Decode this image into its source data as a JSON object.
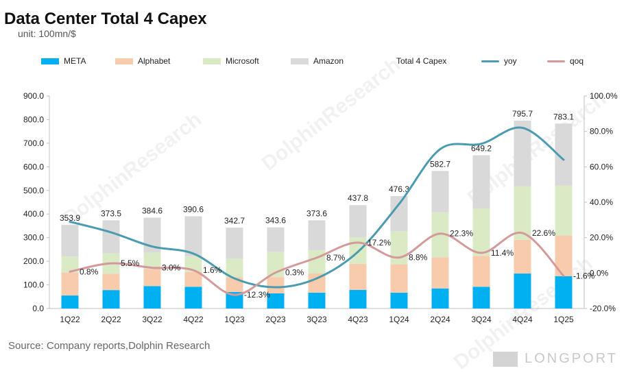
{
  "header": {
    "title": "Data Center Total 4 Capex",
    "subtitle": "unit: 100mn/$"
  },
  "legend": [
    {
      "label": "META",
      "kind": "bar",
      "color": "#00B0F0"
    },
    {
      "label": "Alphabet",
      "kind": "bar",
      "color": "#F8CBAD"
    },
    {
      "label": "Microsoft",
      "kind": "bar",
      "color": "#D9EAC5"
    },
    {
      "label": "Amazon",
      "kind": "bar",
      "color": "#D9D9D9"
    },
    {
      "label": "Total 4 Capex",
      "kind": "none",
      "color": ""
    },
    {
      "label": "yoy",
      "kind": "line",
      "color": "#4A9BB0"
    },
    {
      "label": "qoq",
      "kind": "line",
      "color": "#D4999B"
    }
  ],
  "footer": {
    "source": "Source: Company reports,Dolphin Research",
    "logo_text": "LONGPORT"
  },
  "watermark": {
    "text": "DolphinResearch"
  },
  "chart_data": {
    "type": "bar",
    "stacked": true,
    "categories": [
      "1Q22",
      "2Q22",
      "3Q22",
      "4Q22",
      "1Q23",
      "2Q23",
      "3Q23",
      "4Q23",
      "1Q24",
      "2Q24",
      "3Q24",
      "4Q24",
      "1Q25"
    ],
    "series": [
      {
        "name": "META",
        "color": "#00B0F0",
        "values": [
          55,
          78,
          95,
          92,
          70,
          64,
          67,
          79,
          67,
          85,
          92,
          148,
          137
        ]
      },
      {
        "name": "Alphabet",
        "color": "#F8CBAD",
        "values": [
          98,
          69,
          72,
          63,
          63,
          69,
          81,
          110,
          120,
          132,
          131,
          143,
          172
        ]
      },
      {
        "name": "Microsoft",
        "color": "#D9EAC5",
        "values": [
          67,
          87,
          69,
          66,
          78,
          107,
          99,
          112,
          140,
          190,
          200,
          226,
          212
        ]
      },
      {
        "name": "Amazon",
        "color": "#D9D9D9",
        "values": [
          133.9,
          139.5,
          148.6,
          169.6,
          131.7,
          103.6,
          126.6,
          136.8,
          149.3,
          175.7,
          226.2,
          278.7,
          262.1
        ]
      }
    ],
    "totals": {
      "name": "Total 4 Capex",
      "values": [
        353.9,
        373.5,
        384.6,
        390.6,
        342.7,
        343.6,
        373.6,
        437.8,
        476.3,
        582.7,
        649.2,
        795.7,
        783.1
      ],
      "labels": [
        "353.9",
        "373.5",
        "384.6",
        "390.6",
        "342.7",
        "343.6",
        "373.6",
        "437.8",
        "476.3",
        "582.7",
        "649.2",
        "795.7",
        "783.1"
      ]
    },
    "lines": [
      {
        "name": "yoy",
        "color": "#4A9BB0",
        "axis": "right",
        "values": [
          29,
          23,
          15,
          11,
          -3,
          -8,
          -3,
          12,
          39,
          70,
          73,
          82,
          64
        ]
      },
      {
        "name": "qoq",
        "color": "#D4999B",
        "axis": "right",
        "values": [
          0.8,
          5.5,
          3.0,
          1.6,
          -12.3,
          0.3,
          8.7,
          17.2,
          8.8,
          22.3,
          11.4,
          22.6,
          -1.6
        ],
        "labels": [
          "0.8%",
          "5.5%",
          "3.0%",
          "1.6%",
          "-12.3%",
          "0.3%",
          "8.7%",
          "17.2%",
          "8.8%",
          "22.3%",
          "11.4%",
          "22.6%",
          "-1.6%"
        ]
      }
    ],
    "y_left": {
      "min": 0,
      "max": 900,
      "ticks": [
        "0.0",
        "100.0",
        "200.0",
        "300.0",
        "400.0",
        "500.0",
        "600.0",
        "700.0",
        "800.0",
        "900.0"
      ]
    },
    "y_right": {
      "min": -20,
      "max": 100,
      "ticks": [
        "-20.0%",
        "0.0%",
        "20.0%",
        "40.0%",
        "60.0%",
        "80.0%",
        "100.0%"
      ]
    },
    "grid": false,
    "legend_position": "top"
  }
}
